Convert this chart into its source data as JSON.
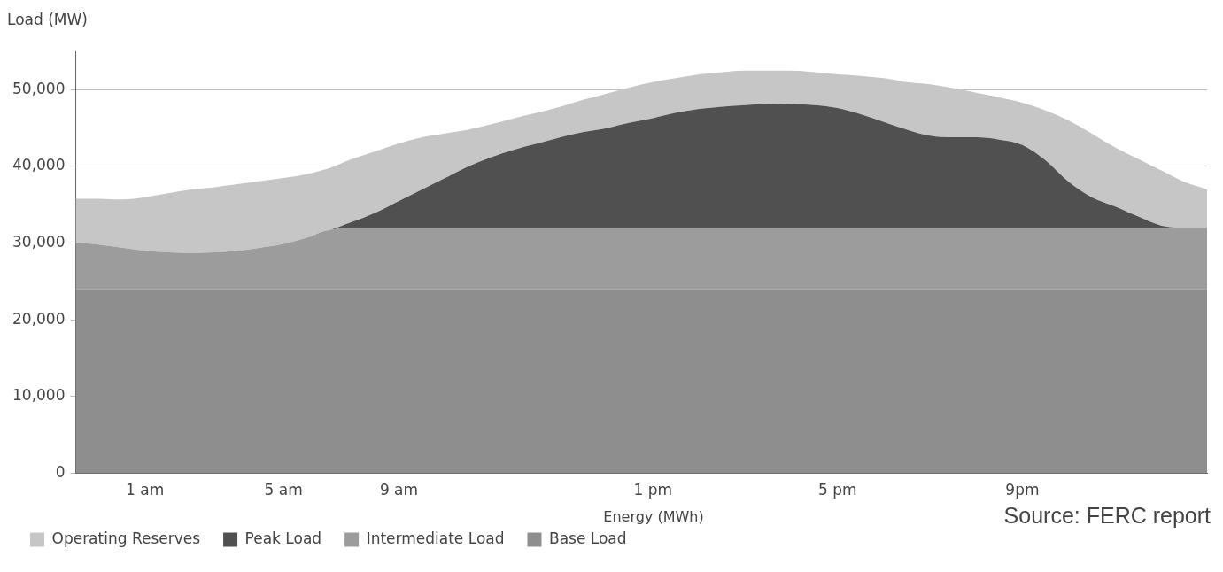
{
  "chart_data": {
    "type": "area",
    "ylabel": "Load (MW)",
    "xlabel": "Energy (MWh)",
    "annotations": [
      "Source: FERC report"
    ],
    "categories": [
      null,
      null,
      null,
      "1 am",
      null,
      null,
      null,
      null,
      null,
      "5 am",
      null,
      null,
      null,
      null,
      "9 am",
      null,
      null,
      null,
      null,
      null,
      null,
      null,
      null,
      null,
      null,
      "1 pm",
      null,
      null,
      null,
      null,
      null,
      null,
      null,
      "5 pm",
      null,
      null,
      null,
      null,
      null,
      null,
      null,
      "9pm",
      null,
      null,
      null,
      null,
      null,
      null,
      null,
      null
    ],
    "stacked": true,
    "ylim": [
      0,
      55000
    ],
    "yticks": [
      0,
      {
        "value": 10000,
        "label": "10,000"
      },
      {
        "value": 20000,
        "label": "20,000"
      },
      {
        "value": 30000,
        "label": "30,000"
      },
      {
        "value": 40000,
        "label": "40,000"
      },
      {
        "value": 50000,
        "label": "50,000"
      }
    ],
    "grid": "y",
    "legend": "bottom left",
    "series": [
      {
        "name": "Base Load",
        "color": "#8e8e8e",
        "values": [
          24000,
          24000,
          24000,
          24000,
          24000,
          24000,
          24000,
          24000,
          24000,
          24000,
          24000,
          24000,
          24000,
          24000,
          24000,
          24000,
          24000,
          24000,
          24000,
          24000,
          24000,
          24000,
          24000,
          24000,
          24000,
          24000,
          24000,
          24000,
          24000,
          24000,
          24000,
          24000,
          24000,
          24000,
          24000,
          24000,
          24000,
          24000,
          24000,
          24000,
          24000,
          24000,
          24000,
          24000,
          24000,
          24000,
          24000,
          24000,
          24000,
          24000
        ]
      },
      {
        "name": "Intermediate Load",
        "color": "#9c9c9c",
        "values": [
          6100,
          5800,
          5400,
          5000,
          4800,
          4700,
          4800,
          5000,
          5400,
          5900,
          6700,
          7700,
          8000,
          8000,
          8000,
          8000,
          8000,
          8000,
          8000,
          8000,
          8000,
          8000,
          8000,
          8000,
          8000,
          8000,
          8000,
          8000,
          8000,
          8000,
          8000,
          8000,
          8000,
          8000,
          8000,
          8000,
          8000,
          8000,
          8000,
          8000,
          8000,
          8000,
          8000,
          8000,
          8000,
          8000,
          8000,
          8000,
          8000,
          8000
        ]
      },
      {
        "name": "Peak Load",
        "color": "#505050",
        "values": [
          0,
          0,
          0,
          0,
          0,
          0,
          0,
          0,
          0,
          0,
          0,
          0,
          800,
          2000,
          3500,
          5000,
          6500,
          8000,
          9200,
          10200,
          11000,
          11800,
          12500,
          13000,
          13700,
          14300,
          15000,
          15500,
          15800,
          16000,
          16200,
          16100,
          16000,
          15600,
          14800,
          13800,
          12800,
          12000,
          11800,
          11800,
          11500,
          10800,
          8800,
          6000,
          4000,
          2800,
          1500,
          300,
          0,
          0
        ]
      },
      {
        "name": "Operating Reserves",
        "color": "#c6c6c6",
        "values": [
          5700,
          6000,
          6300,
          7000,
          7700,
          8300,
          8500,
          8700,
          8700,
          8600,
          8300,
          8100,
          8200,
          8000,
          7500,
          6800,
          5800,
          4800,
          4300,
          4100,
          4000,
          4000,
          4200,
          4500,
          4600,
          4700,
          4500,
          4500,
          4500,
          4500,
          4300,
          4400,
          4300,
          4400,
          5000,
          5700,
          6200,
          6700,
          6400,
          5800,
          5500,
          5500,
          6500,
          8000,
          8300,
          7700,
          7500,
          7200,
          6000,
          5000
        ]
      }
    ]
  }
}
